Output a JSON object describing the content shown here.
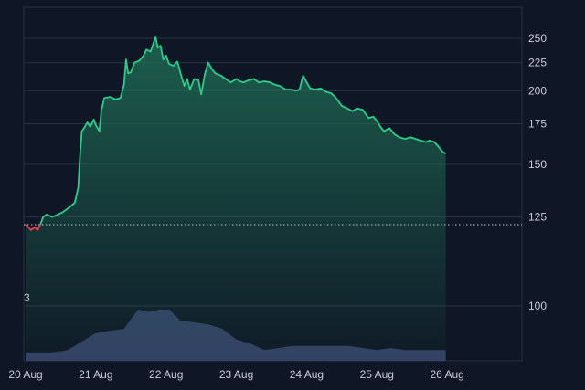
{
  "chart_data": {
    "type": "area",
    "title": "",
    "xlabel": "",
    "ylabel": "",
    "y_scale": "log",
    "y_ticks": [
      100,
      125,
      150,
      175,
      200,
      225,
      250
    ],
    "x_ticks": [
      {
        "label": "20 Aug",
        "day": 20
      },
      {
        "label": "21 Aug",
        "day": 21
      },
      {
        "label": "22 Aug",
        "day": 22
      },
      {
        "label": "23 Aug",
        "day": 23
      },
      {
        "label": "24 Aug",
        "day": 24
      },
      {
        "label": "25 Aug",
        "day": 25
      },
      {
        "label": "26 Aug",
        "day": 26
      }
    ],
    "x_range_days": [
      20.0,
      27.0
    ],
    "baseline_value": 122,
    "grid": "horizontal",
    "colors": {
      "background": "#0f1625",
      "line_up": "#26d08a",
      "line_down": "#e8404a",
      "area_top": "#1f6b54",
      "volume": "#39456b",
      "grid": "#2a3242",
      "baseline": "#bfc5cf",
      "axis_text": "#c7ccd6"
    },
    "series": [
      {
        "values": [
          [
            20.0,
            122
          ],
          [
            20.04,
            121
          ],
          [
            20.08,
            120
          ],
          [
            20.13,
            121
          ],
          [
            20.17,
            120
          ],
          [
            20.21,
            122
          ],
          [
            20.25,
            125
          ],
          [
            20.3,
            126
          ],
          [
            20.38,
            125
          ],
          [
            20.46,
            126
          ],
          [
            20.53,
            127
          ],
          [
            20.62,
            129
          ],
          [
            20.7,
            131
          ],
          [
            20.75,
            138
          ],
          [
            20.78,
            158
          ],
          [
            20.8,
            170
          ],
          [
            20.83,
            172
          ],
          [
            20.88,
            176
          ],
          [
            20.92,
            173
          ],
          [
            20.97,
            178
          ],
          [
            21.0,
            174
          ],
          [
            21.05,
            170
          ],
          [
            21.08,
            185
          ],
          [
            21.12,
            194
          ],
          [
            21.2,
            195
          ],
          [
            21.28,
            193
          ],
          [
            21.35,
            194
          ],
          [
            21.4,
            205
          ],
          [
            21.43,
            228
          ],
          [
            21.46,
            215
          ],
          [
            21.5,
            216
          ],
          [
            21.55,
            225
          ],
          [
            21.62,
            227
          ],
          [
            21.68,
            232
          ],
          [
            21.72,
            238
          ],
          [
            21.78,
            236
          ],
          [
            21.82,
            245
          ],
          [
            21.85,
            252
          ],
          [
            21.88,
            240
          ],
          [
            21.92,
            242
          ],
          [
            21.96,
            228
          ],
          [
            22.0,
            232
          ],
          [
            22.04,
            224
          ],
          [
            22.1,
            222
          ],
          [
            22.16,
            226
          ],
          [
            22.22,
            212
          ],
          [
            22.26,
            204
          ],
          [
            22.3,
            210
          ],
          [
            22.34,
            201
          ],
          [
            22.4,
            210
          ],
          [
            22.46,
            209
          ],
          [
            22.5,
            197
          ],
          [
            22.55,
            214
          ],
          [
            22.6,
            225
          ],
          [
            22.65,
            219
          ],
          [
            22.7,
            215
          ],
          [
            22.78,
            213
          ],
          [
            22.85,
            210
          ],
          [
            22.92,
            207
          ],
          [
            23.0,
            210
          ],
          [
            23.05,
            208
          ],
          [
            23.1,
            207
          ],
          [
            23.18,
            209
          ],
          [
            23.25,
            210
          ],
          [
            23.32,
            207
          ],
          [
            23.4,
            208
          ],
          [
            23.48,
            207
          ],
          [
            23.55,
            205
          ],
          [
            23.62,
            204
          ],
          [
            23.7,
            201
          ],
          [
            23.78,
            201
          ],
          [
            23.85,
            200
          ],
          [
            23.9,
            201
          ],
          [
            23.95,
            213
          ],
          [
            24.0,
            207
          ],
          [
            24.05,
            202
          ],
          [
            24.12,
            201
          ],
          [
            24.2,
            202
          ],
          [
            24.28,
            199
          ],
          [
            24.35,
            198
          ],
          [
            24.42,
            194
          ],
          [
            24.5,
            188
          ],
          [
            24.58,
            186
          ],
          [
            24.65,
            184
          ],
          [
            24.72,
            186
          ],
          [
            24.8,
            185
          ],
          [
            24.88,
            179
          ],
          [
            24.95,
            180
          ],
          [
            25.0,
            177
          ],
          [
            25.05,
            173
          ],
          [
            25.1,
            170
          ],
          [
            25.18,
            172
          ],
          [
            25.25,
            168
          ],
          [
            25.32,
            166
          ],
          [
            25.4,
            165
          ],
          [
            25.48,
            166
          ],
          [
            25.55,
            165
          ],
          [
            25.62,
            164
          ],
          [
            25.7,
            163
          ],
          [
            25.75,
            164
          ],
          [
            25.82,
            163
          ],
          [
            25.88,
            160
          ],
          [
            25.94,
            157
          ],
          [
            25.98,
            156
          ]
        ]
      }
    ],
    "volume": [
      [
        20.0,
        4
      ],
      [
        20.2,
        4
      ],
      [
        20.4,
        4
      ],
      [
        20.6,
        5
      ],
      [
        20.8,
        9
      ],
      [
        21.0,
        13
      ],
      [
        21.2,
        14
      ],
      [
        21.4,
        15
      ],
      [
        21.6,
        24
      ],
      [
        21.75,
        23
      ],
      [
        21.9,
        24
      ],
      [
        22.05,
        24
      ],
      [
        22.2,
        19
      ],
      [
        22.4,
        18
      ],
      [
        22.6,
        17
      ],
      [
        22.8,
        15
      ],
      [
        23.0,
        10
      ],
      [
        23.2,
        8
      ],
      [
        23.4,
        5
      ],
      [
        23.6,
        6
      ],
      [
        23.8,
        7
      ],
      [
        24.0,
        7
      ],
      [
        24.2,
        7
      ],
      [
        24.4,
        7
      ],
      [
        24.6,
        7
      ],
      [
        24.8,
        6
      ],
      [
        25.0,
        5
      ],
      [
        25.2,
        6
      ],
      [
        25.4,
        5
      ],
      [
        25.6,
        5
      ],
      [
        25.8,
        5
      ],
      [
        25.98,
        5
      ]
    ],
    "annotations": [
      "3"
    ]
  }
}
